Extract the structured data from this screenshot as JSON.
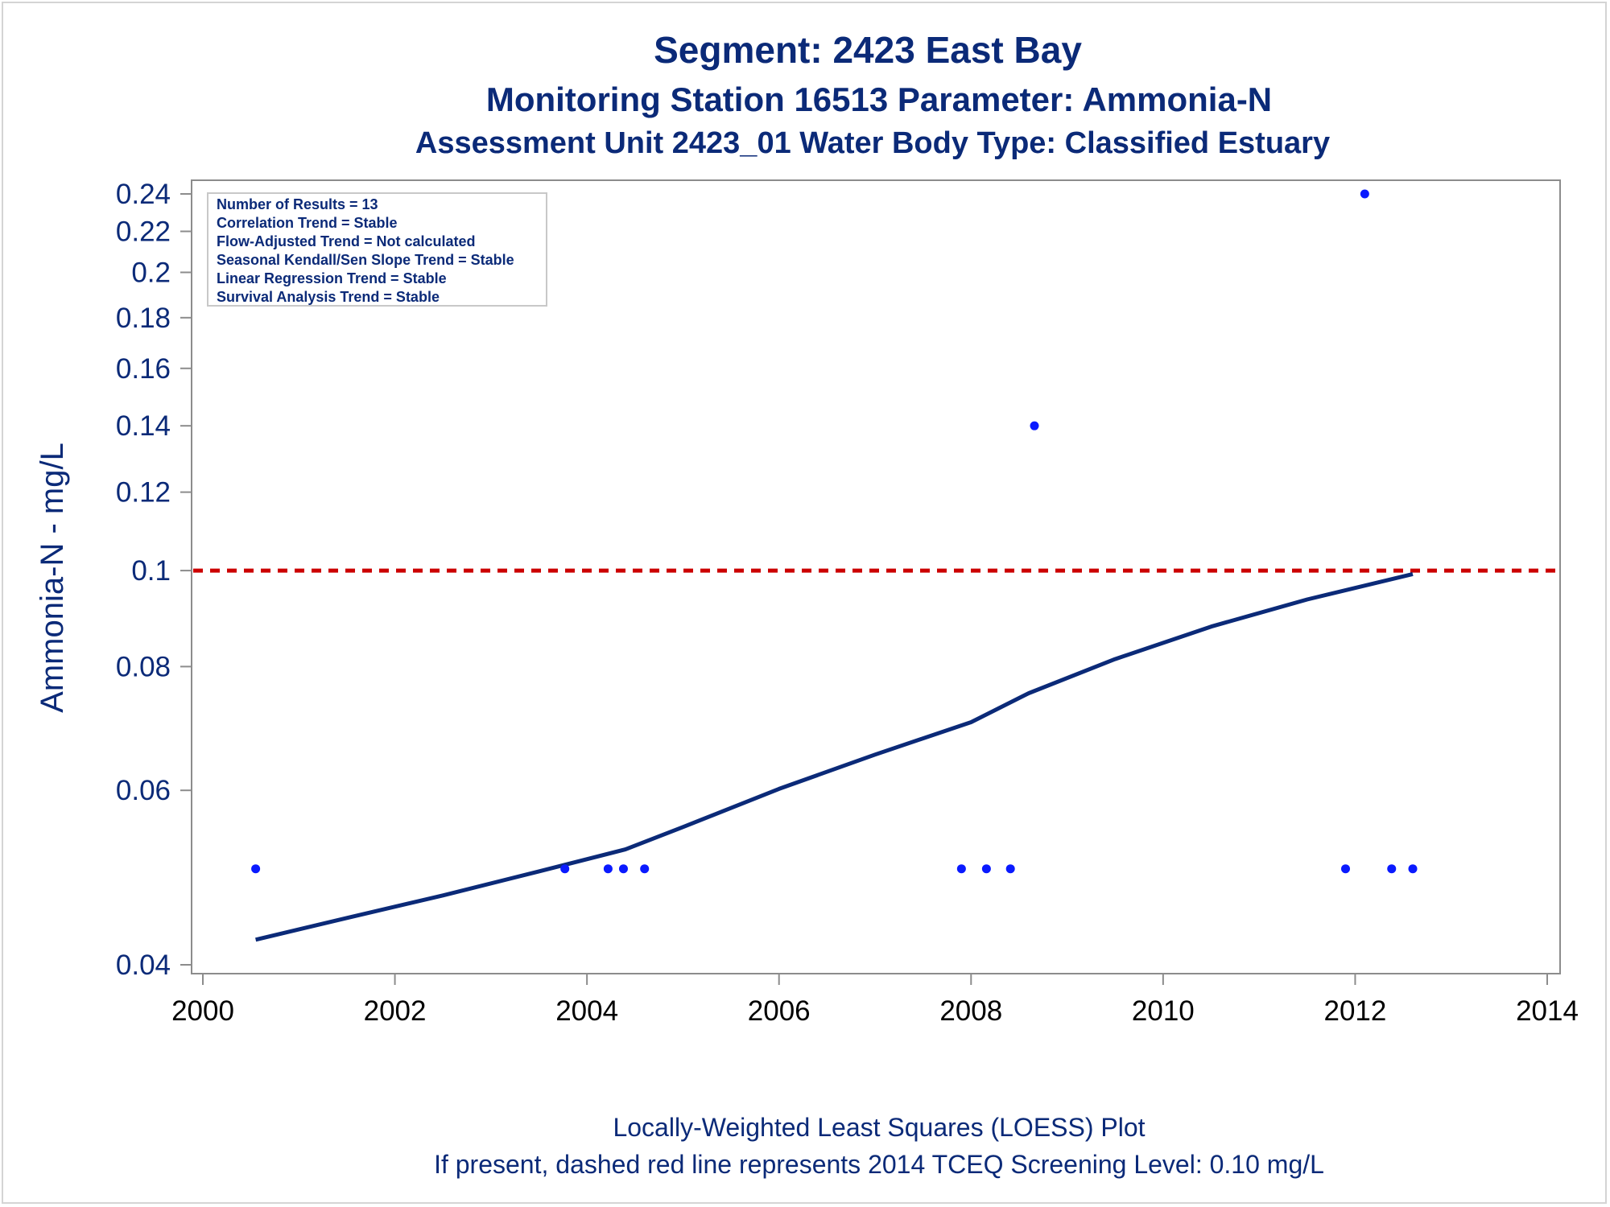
{
  "chart_data": {
    "type": "scatter",
    "title": "Segment: 2423  East Bay",
    "subtitle": "Monitoring Station 16513 Parameter: Ammonia-N",
    "subtitle2": "Assessment Unit 2423_01   Water Body Type: Classified Estuary",
    "ylabel": "Ammonia-N - mg/L",
    "xlabel": "",
    "yscale": "log",
    "xlim": [
      2000,
      2014
    ],
    "ylim": [
      0.039,
      0.245
    ],
    "y_ticks": [
      "0.04",
      "0.06",
      "0.08",
      "0.1",
      "0.12",
      "0.14",
      "0.16",
      "0.18",
      "0.2",
      "0.22",
      "0.24"
    ],
    "x_ticks": [
      "2000",
      "2002",
      "2004",
      "2006",
      "2008",
      "2010",
      "2012",
      "2014"
    ],
    "points": [
      {
        "x": 2000.55,
        "y": 0.05
      },
      {
        "x": 2003.77,
        "y": 0.05
      },
      {
        "x": 2004.22,
        "y": 0.05
      },
      {
        "x": 2004.38,
        "y": 0.05
      },
      {
        "x": 2004.6,
        "y": 0.05
      },
      {
        "x": 2007.9,
        "y": 0.05
      },
      {
        "x": 2008.16,
        "y": 0.05
      },
      {
        "x": 2008.41,
        "y": 0.05
      },
      {
        "x": 2008.66,
        "y": 0.14
      },
      {
        "x": 2011.9,
        "y": 0.05
      },
      {
        "x": 2012.1,
        "y": 0.24
      },
      {
        "x": 2012.38,
        "y": 0.05
      },
      {
        "x": 2012.6,
        "y": 0.05
      }
    ],
    "loess_line": [
      {
        "x": 2000.55,
        "y": 0.0424
      },
      {
        "x": 2001.5,
        "y": 0.0446
      },
      {
        "x": 2002.5,
        "y": 0.047
      },
      {
        "x": 2003.5,
        "y": 0.0497
      },
      {
        "x": 2004.4,
        "y": 0.0523
      },
      {
        "x": 2005.0,
        "y": 0.0551
      },
      {
        "x": 2006.0,
        "y": 0.0602
      },
      {
        "x": 2007.0,
        "y": 0.0652
      },
      {
        "x": 2008.0,
        "y": 0.0703
      },
      {
        "x": 2008.6,
        "y": 0.0752
      },
      {
        "x": 2009.5,
        "y": 0.0814
      },
      {
        "x": 2010.5,
        "y": 0.0878
      },
      {
        "x": 2011.5,
        "y": 0.0935
      },
      {
        "x": 2012.6,
        "y": 0.0992
      }
    ],
    "reference_line": {
      "y": 0.1,
      "style": "dashed",
      "color": "#cc0000"
    },
    "stats_box": [
      "Number of Results = 13",
      "Correlation Trend = Stable",
      "Flow-Adjusted Trend = Not calculated",
      "Seasonal Kendall/Sen Slope Trend = Stable",
      "Linear Regression Trend = Stable",
      "Survival Analysis Trend = Stable"
    ],
    "footnote1": "Locally-Weighted Least Squares (LOESS) Plot",
    "footnote2": "If present, dashed red line represents 2014 TCEQ Screening Level: 0.10 mg/L",
    "colors": {
      "text": "#0b2a78",
      "points": "#0a1aff",
      "line": "#0b2a78",
      "reference": "#cc0000",
      "axis": "#8c8c8c"
    },
    "grid": false,
    "legend": "top-left stats box"
  }
}
